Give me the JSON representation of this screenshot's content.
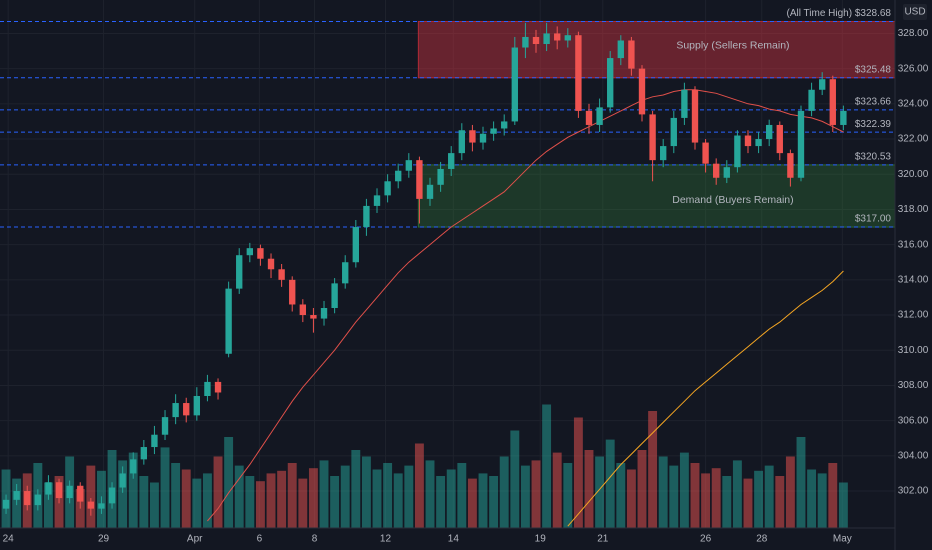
{
  "chart_data": {
    "type": "candlestick",
    "currency": "USD",
    "up_color": "#26a69a",
    "down_color": "#ef5350",
    "open": [
      301.0,
      301.5,
      302,
      301.2,
      301.8,
      302.5,
      301.6,
      302.3,
      301.4,
      301.0,
      301.3,
      302.2,
      303.0,
      303.8,
      304.5,
      305.2,
      306.2,
      307.0,
      306.3,
      307.4,
      308.2,
      309.8,
      313.5,
      315.4,
      315.8,
      315.2,
      314.6,
      314.0,
      312.6,
      312.0,
      311.8,
      312.4,
      313.8,
      315.0,
      317.0,
      318.2,
      318.8,
      319.6,
      320.2,
      320.8,
      318.6,
      319.4,
      320.3,
      321.2,
      322.5,
      321.8,
      322.3,
      322.6,
      323.0,
      327.2,
      327.8,
      327.4,
      328.0,
      327.6,
      327.9,
      323.6,
      322.8,
      323.8,
      326.6,
      327.6,
      326.0,
      323.4,
      320.8,
      321.6,
      323.2,
      324.8,
      321.8,
      320.6,
      319.8,
      320.4,
      322.2,
      321.6,
      322.0,
      322.8,
      321.2,
      319.8,
      323.6,
      324.8,
      325.4,
      322.8
    ],
    "high": [
      301.8,
      302.4,
      302.3,
      302.1,
      302.9,
      302.7,
      302.6,
      302.5,
      301.6,
      301.7,
      302.5,
      303.4,
      304.2,
      304.9,
      305.7,
      306.6,
      307.5,
      307.3,
      307.9,
      308.6,
      308.4,
      313.9,
      315.8,
      316.1,
      316.0,
      315.5,
      314.9,
      314.2,
      312.9,
      312.4,
      312.8,
      314.1,
      315.4,
      317.4,
      318.6,
      319.2,
      320.0,
      320.6,
      321.2,
      321.0,
      319.8,
      320.7,
      321.6,
      322.9,
      322.8,
      322.7,
      323.0,
      323.4,
      327.8,
      328.6,
      328.2,
      328.6,
      328.4,
      328.3,
      328.1,
      324.0,
      324.3,
      327.0,
      327.9,
      327.8,
      326.2,
      323.6,
      322.0,
      323.6,
      325.2,
      325.0,
      322.0,
      320.9,
      320.8,
      322.5,
      322.5,
      322.4,
      323.1,
      323.0,
      321.4,
      323.9,
      325.2,
      325.8,
      325.6,
      323.9
    ],
    "low": [
      300.7,
      301.2,
      300.9,
      300.9,
      301.5,
      301.3,
      301.3,
      301.0,
      300.6,
      300.7,
      301.0,
      301.9,
      302.7,
      303.5,
      304.1,
      304.9,
      305.8,
      305.9,
      306.0,
      307.1,
      307.2,
      309.6,
      313.2,
      315.0,
      314.8,
      314.1,
      313.6,
      312.2,
      311.6,
      311.0,
      311.4,
      312.1,
      313.5,
      314.7,
      316.5,
      317.8,
      318.4,
      319.2,
      319.8,
      317.2,
      318.2,
      319.0,
      319.9,
      320.8,
      321.3,
      321.4,
      321.9,
      322.2,
      322.8,
      326.6,
      326.9,
      327.0,
      327.1,
      327.2,
      323.2,
      322.3,
      322.4,
      323.5,
      326.2,
      325.6,
      323.0,
      319.6,
      320.4,
      321.2,
      322.8,
      321.4,
      320.1,
      319.4,
      319.5,
      320.1,
      321.2,
      321.2,
      321.6,
      320.8,
      319.3,
      319.6,
      323.3,
      324.5,
      322.4,
      322.5
    ],
    "close": [
      301.5,
      302,
      301.2,
      301.8,
      302.5,
      301.6,
      302.3,
      301.4,
      301.0,
      301.3,
      302.2,
      303.0,
      303.8,
      304.5,
      305.2,
      306.2,
      307.0,
      306.3,
      307.4,
      308.2,
      307.6,
      313.5,
      315.4,
      315.8,
      315.2,
      314.6,
      314.0,
      312.6,
      312.0,
      311.8,
      312.4,
      313.8,
      315.0,
      317.0,
      318.2,
      318.8,
      319.6,
      320.2,
      320.8,
      318.6,
      319.4,
      320.3,
      321.2,
      322.5,
      321.8,
      322.3,
      322.6,
      323.0,
      327.2,
      327.8,
      327.4,
      328.0,
      327.6,
      327.9,
      323.6,
      322.8,
      323.8,
      326.6,
      327.6,
      326.0,
      323.4,
      320.8,
      321.6,
      323.2,
      324.8,
      321.8,
      320.6,
      319.8,
      320.4,
      322.2,
      321.6,
      322.0,
      322.8,
      321.2,
      319.8,
      323.6,
      324.8,
      325.4,
      322.8,
      323.6
    ],
    "volume": [
      45,
      38,
      42,
      50,
      35,
      40,
      55,
      30,
      48,
      44,
      60,
      52,
      58,
      40,
      35,
      62,
      50,
      45,
      38,
      42,
      55,
      70,
      48,
      40,
      36,
      42,
      44,
      50,
      38,
      46,
      52,
      40,
      48,
      60,
      55,
      45,
      50,
      42,
      48,
      65,
      52,
      40,
      45,
      50,
      38,
      42,
      40,
      55,
      75,
      48,
      52,
      95,
      58,
      50,
      85,
      60,
      55,
      68,
      50,
      45,
      60,
      90,
      55,
      48,
      58,
      50,
      42,
      46,
      40,
      52,
      38,
      44,
      48,
      40,
      55,
      70,
      45,
      42,
      50,
      35
    ],
    "volume_lim": [
      0,
      100
    ],
    "moving_averages": [
      {
        "color": "#e0504a",
        "values": [
          null,
          null,
          null,
          null,
          null,
          null,
          null,
          null,
          null,
          null,
          null,
          null,
          null,
          null,
          null,
          null,
          null,
          null,
          null,
          300.3,
          301.0,
          301.9,
          302.7,
          303.5,
          304.4,
          305.3,
          306.2,
          307.1,
          307.9,
          308.6,
          309.3,
          310.0,
          310.8,
          311.6,
          312.3,
          313.0,
          313.7,
          314.4,
          315.0,
          315.5,
          316.0,
          316.5,
          317.0,
          317.4,
          317.8,
          318.2,
          318.6,
          319.0,
          319.6,
          320.2,
          320.8,
          321.3,
          321.7,
          322.1,
          322.4,
          322.7,
          323.0,
          323.3,
          323.6,
          323.9,
          324.2,
          324.4,
          324.5,
          324.7,
          324.8,
          324.8,
          324.7,
          324.6,
          324.4,
          324.2,
          324.0,
          323.9,
          323.7,
          323.6,
          323.4,
          323.3,
          323.2,
          323.0,
          322.7,
          322.4
        ]
      },
      {
        "color": "#f5a623",
        "values": [
          null,
          null,
          null,
          null,
          null,
          null,
          null,
          null,
          null,
          null,
          null,
          null,
          null,
          null,
          null,
          null,
          null,
          null,
          null,
          null,
          null,
          null,
          null,
          null,
          null,
          null,
          null,
          null,
          null,
          null,
          null,
          null,
          null,
          null,
          null,
          null,
          null,
          null,
          null,
          null,
          null,
          null,
          null,
          null,
          null,
          null,
          null,
          null,
          null,
          null,
          null,
          null,
          null,
          300.0,
          300.7,
          301.4,
          302.1,
          302.8,
          303.5,
          304.1,
          304.7,
          305.3,
          305.9,
          306.5,
          307.1,
          307.7,
          308.2,
          308.7,
          309.2,
          309.7,
          310.2,
          310.7,
          311.2,
          311.6,
          312.1,
          312.6,
          313.0,
          313.4,
          313.9,
          314.5
        ]
      }
    ],
    "levels": [
      {
        "value": 328.68,
        "label": "(All Time High) $328.68"
      },
      {
        "value": 325.48,
        "label": "$325.48"
      },
      {
        "value": 323.66,
        "label": "$323.66"
      },
      {
        "value": 322.39,
        "label": "$322.39"
      },
      {
        "value": 320.53,
        "label": "$320.53"
      },
      {
        "value": 317.0,
        "label": "$317.00"
      }
    ],
    "zones": [
      {
        "name": "Supply (Sellers Remain)",
        "x0": 38.9,
        "from": 325.48,
        "to": 328.68,
        "color": "rgba(242,54,69,0.38)",
        "border": "#b02a37"
      },
      {
        "name": "Demand (Buyers Remain)",
        "x0": 38.9,
        "from": 317.0,
        "to": 320.53,
        "color": "rgba(56,142,60,0.28)",
        "border": "#2e6b32"
      }
    ],
    "xlim": [
      -0.57,
      83.87
    ],
    "ylim": [
      299.9,
      329.9
    ],
    "xticks": [
      {
        "value": 0.2,
        "label": "24"
      },
      {
        "value": 9.2,
        "label": "29"
      },
      {
        "value": 17.8,
        "label": "Apr"
      },
      {
        "value": 23.9,
        "label": "6"
      },
      {
        "value": 29.1,
        "label": "8"
      },
      {
        "value": 35.8,
        "label": "12"
      },
      {
        "value": 42.2,
        "label": "14"
      },
      {
        "value": 50.4,
        "label": "19"
      },
      {
        "value": 56.3,
        "label": "21"
      },
      {
        "value": 66.0,
        "label": "26"
      },
      {
        "value": 71.3,
        "label": "28"
      },
      {
        "value": 78.9,
        "label": "May"
      }
    ],
    "yticks": [
      {
        "value": 302,
        "label": "302.00"
      },
      {
        "value": 304,
        "label": "304.00"
      },
      {
        "value": 306,
        "label": "306.00"
      },
      {
        "value": 308,
        "label": "308.00"
      },
      {
        "value": 310,
        "label": "310.00"
      },
      {
        "value": 312,
        "label": "312.00"
      },
      {
        "value": 314,
        "label": "314.00"
      },
      {
        "value": 316,
        "label": "316.00"
      },
      {
        "value": 318,
        "label": "318.00"
      },
      {
        "value": 320,
        "label": "320.00"
      },
      {
        "value": 322,
        "label": "322.00"
      },
      {
        "value": 324,
        "label": "324.00"
      },
      {
        "value": 326,
        "label": "326.00"
      },
      {
        "value": 328,
        "label": "328.00"
      }
    ],
    "grid": true
  }
}
